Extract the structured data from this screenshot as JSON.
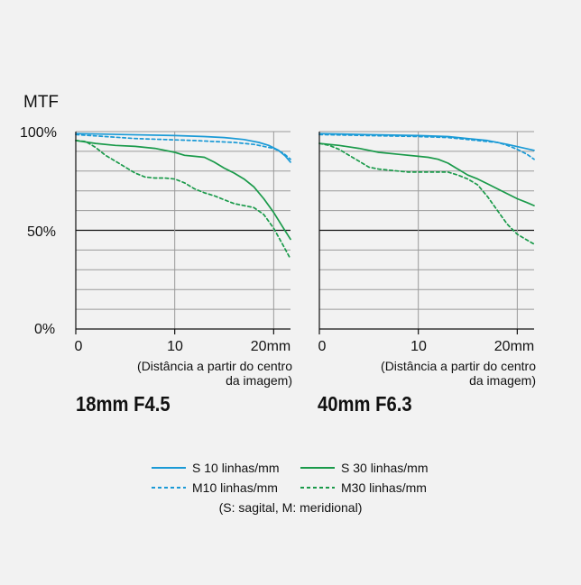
{
  "y_axis_label": "MTF",
  "x_axis_label_line1": "(Distância a partir do centro",
  "x_axis_label_line2": "da imagem)",
  "colors": {
    "s10": "#1a9ad6",
    "s30": "#1a9a4a",
    "grid": "#9a9a9a",
    "half": "#111111"
  },
  "legend": {
    "s10": "S 10 linhas/mm",
    "s30": "S 30 linhas/mm",
    "m10": "M10 linhas/mm",
    "m30": "M30 linhas/mm",
    "note": "(S: sagital, M: meridional)"
  },
  "chart_data": [
    {
      "type": "line",
      "title": "18mm F4.5",
      "xlim": [
        0,
        21.7
      ],
      "ylim": [
        0,
        100
      ],
      "y_tick_labels": [
        "100%",
        "50%",
        "0%"
      ],
      "x_tick_labels": [
        "0",
        "10",
        "20mm"
      ],
      "grid_y": [
        10,
        20,
        30,
        40,
        50,
        60,
        70,
        80,
        90,
        100
      ],
      "series": [
        {
          "name": "S 10 linhas/mm",
          "key": "s10",
          "dash": false,
          "x": [
            0,
            5,
            10,
            13,
            15,
            17,
            18.5,
            19.5,
            20.5,
            21.2,
            21.7
          ],
          "y": [
            99,
            98.5,
            98,
            97.5,
            97,
            96,
            94.5,
            93,
            90.5,
            87.5,
            84.5
          ]
        },
        {
          "name": "M10 linhas/mm",
          "key": "m10",
          "dash": true,
          "x": [
            0,
            3,
            6,
            9,
            12,
            14,
            16,
            17,
            18,
            19,
            20,
            21,
            21.7
          ],
          "y": [
            98.5,
            97.5,
            96.5,
            96,
            95.5,
            95,
            94.5,
            94,
            93.5,
            92.5,
            91.5,
            89,
            86
          ]
        },
        {
          "name": "S 30 linhas/mm",
          "key": "s30",
          "dash": false,
          "x": [
            0,
            2,
            4,
            6,
            8,
            10,
            11,
            12,
            13,
            14,
            15,
            16,
            17,
            18,
            19,
            20,
            21,
            21.7
          ],
          "y": [
            95.5,
            94,
            93,
            92.5,
            91.5,
            89.5,
            88,
            87.5,
            87,
            84.5,
            81.5,
            79,
            76,
            72,
            66,
            59,
            51,
            45.5
          ]
        },
        {
          "name": "M30 linhas/mm",
          "key": "m30",
          "dash": true,
          "x": [
            0,
            1,
            2,
            3,
            4,
            5,
            6,
            7,
            8,
            9,
            10,
            11,
            12,
            13,
            14,
            15,
            16,
            17,
            18,
            19,
            20,
            21,
            21.7
          ],
          "y": [
            95.5,
            95,
            92,
            88,
            85,
            82,
            79,
            77,
            76.5,
            76.5,
            76,
            74,
            71,
            69,
            67.5,
            65.5,
            63.5,
            62.5,
            61.5,
            58,
            51,
            42,
            35.5
          ]
        }
      ]
    },
    {
      "type": "line",
      "title": "40mm F6.3",
      "xlim": [
        0,
        21.7
      ],
      "ylim": [
        0,
        100
      ],
      "x_tick_labels": [
        "0",
        "10",
        "20mm"
      ],
      "grid_y": [
        10,
        20,
        30,
        40,
        50,
        60,
        70,
        80,
        90,
        100
      ],
      "series": [
        {
          "name": "S 10 linhas/mm",
          "key": "s10",
          "dash": false,
          "x": [
            0,
            5,
            10,
            13,
            15,
            17,
            19,
            21.7
          ],
          "y": [
            99,
            98.5,
            98,
            97.5,
            96.5,
            95.5,
            93.5,
            90.5
          ]
        },
        {
          "name": "M10 linhas/mm",
          "key": "m10",
          "dash": true,
          "x": [
            0,
            5,
            10,
            13,
            15,
            17,
            18,
            19,
            20,
            21,
            21.7
          ],
          "y": [
            98.5,
            98,
            97.5,
            97,
            96,
            95,
            94.5,
            93,
            91,
            88.5,
            86
          ]
        },
        {
          "name": "S 30 linhas/mm",
          "key": "s30",
          "dash": false,
          "x": [
            0,
            2,
            4,
            6,
            8,
            10,
            11,
            12,
            13,
            14,
            15,
            16,
            17,
            18,
            19,
            20,
            21,
            21.7
          ],
          "y": [
            94,
            93,
            91.5,
            89.5,
            88.5,
            87.5,
            87,
            86,
            84,
            81,
            78,
            76,
            73.5,
            71,
            68.5,
            66,
            64,
            62.5
          ]
        },
        {
          "name": "M30 linhas/mm",
          "key": "m30",
          "dash": true,
          "x": [
            0,
            1,
            2,
            3,
            4,
            5,
            6,
            7,
            8,
            9,
            10,
            11,
            12,
            13,
            14,
            15,
            16,
            17,
            18,
            19,
            20,
            21,
            21.7
          ],
          "y": [
            94,
            93,
            91,
            88,
            85,
            82,
            81,
            80.5,
            80,
            79.5,
            79.5,
            79.5,
            79.5,
            79.5,
            78,
            76,
            73,
            67,
            60,
            53,
            48,
            45,
            43
          ]
        }
      ]
    }
  ]
}
